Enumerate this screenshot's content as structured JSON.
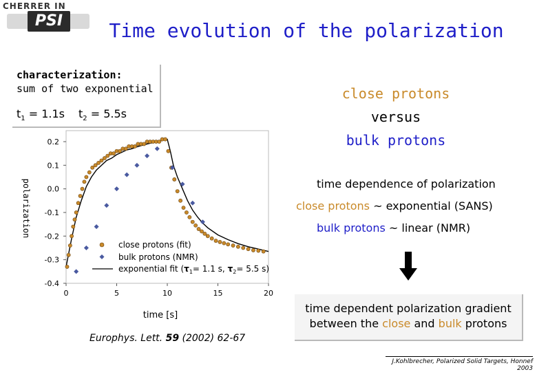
{
  "logo": {
    "top_text": "CHERRER IN",
    "mark": "PSI"
  },
  "title": "Time evolution of the polarization",
  "characterization": {
    "heading": "characterization:",
    "line2": "sum of two exponential",
    "t1_label": "t",
    "t1_sub": "1",
    "t1_value": " = 1.1s",
    "t2_label": "t",
    "t2_sub": "2",
    "t2_value": " = 5.5s"
  },
  "comparison": {
    "close": "close protons",
    "versus": "versus",
    "bulk": "bulk protons"
  },
  "right_panel": {
    "heading": "time dependence of polarization",
    "close_label": "close protons",
    "close_rest": " ~ exponential (SANS)",
    "bulk_label": "bulk protons",
    "bulk_rest": " ~ linear (NMR)",
    "arrow_icon": "down-arrow-icon"
  },
  "conclusion": {
    "line1": "time dependent polarization gradient",
    "pre": "between the ",
    "close": "close",
    "mid": " and ",
    "bulk": "bulk",
    "post": " protons"
  },
  "reference": {
    "journal": "Europhys. Lett. ",
    "volume": "59",
    "rest": " (2002) 62-67"
  },
  "footer": "J.Kohlbrecher, Polarized Solid Targets, Honnef 2003",
  "colors": {
    "title": "#1e1ec8",
    "close": "#c98a2a",
    "bulk_marker": "#4a5aa0",
    "fit": "#000000"
  },
  "chart_data": {
    "type": "scatter",
    "xlabel": "time [s]",
    "ylabel": "polarization",
    "xlim": [
      0,
      20
    ],
    "ylim": [
      -0.4,
      0.25
    ],
    "xticks": [
      "0",
      "5",
      "10",
      "15",
      "20"
    ],
    "yticks": [
      "0.2",
      "0.1",
      "0.0",
      "-0.1",
      "-0.2",
      "-0.3",
      "-0.4"
    ],
    "legend": {
      "placement": "lower-left",
      "close": "close protons (fit)",
      "bulk": "bulk protons (NMR)",
      "fit_pre": "exponential fit (",
      "fit_t1": "1",
      "fit_mid": "= 1.1 s, ",
      "fit_t2": "2",
      "fit_post": "= 5.5 s)"
    },
    "series": [
      {
        "name": "close protons (fit)",
        "x": [
          0.1,
          0.25,
          0.4,
          0.55,
          0.7,
          0.85,
          1.0,
          1.2,
          1.4,
          1.6,
          1.8,
          2.0,
          2.3,
          2.6,
          2.9,
          3.2,
          3.5,
          3.8,
          4.1,
          4.4,
          4.7,
          5.0,
          5.3,
          5.6,
          5.9,
          6.2,
          6.5,
          6.8,
          7.1,
          7.4,
          7.7,
          8.0,
          8.3,
          8.6,
          8.9,
          9.2,
          9.5,
          9.8,
          10.1,
          10.4,
          10.7,
          11.0,
          11.3,
          11.6,
          11.9,
          12.2,
          12.5,
          12.8,
          13.1,
          13.4,
          13.7,
          14.0,
          14.4,
          14.8,
          15.2,
          15.6,
          16.0,
          16.5,
          17.0,
          17.5,
          18.0,
          18.5,
          19.0,
          19.5
        ],
        "y": [
          -0.33,
          -0.28,
          -0.24,
          -0.2,
          -0.16,
          -0.13,
          -0.1,
          -0.06,
          -0.03,
          0.0,
          0.03,
          0.05,
          0.07,
          0.09,
          0.1,
          0.11,
          0.12,
          0.13,
          0.14,
          0.15,
          0.15,
          0.16,
          0.16,
          0.17,
          0.17,
          0.18,
          0.18,
          0.18,
          0.19,
          0.19,
          0.19,
          0.2,
          0.2,
          0.2,
          0.2,
          0.2,
          0.21,
          0.21,
          0.16,
          0.09,
          0.04,
          -0.01,
          -0.05,
          -0.08,
          -0.1,
          -0.12,
          -0.14,
          -0.155,
          -0.17,
          -0.18,
          -0.19,
          -0.2,
          -0.21,
          -0.22,
          -0.225,
          -0.23,
          -0.235,
          -0.24,
          -0.245,
          -0.25,
          -0.255,
          -0.26,
          -0.262,
          -0.265
        ]
      },
      {
        "name": "bulk protons (NMR)",
        "x": [
          1.0,
          2.0,
          3.0,
          4.0,
          5.0,
          6.0,
          7.0,
          8.0,
          9.0,
          10.5,
          11.5,
          12.5,
          13.5
        ],
        "y": [
          -0.35,
          -0.25,
          -0.16,
          -0.07,
          0.0,
          0.06,
          0.1,
          0.14,
          0.17,
          0.09,
          0.02,
          -0.06,
          -0.14
        ]
      }
    ],
    "fit": {
      "name": "exponential fit",
      "x": [
        0,
        0.5,
        1,
        1.5,
        2,
        2.5,
        3,
        3.5,
        4,
        4.5,
        5,
        5.5,
        6,
        6.5,
        7,
        7.5,
        8,
        8.5,
        9,
        9.5,
        10,
        10.3,
        10.6,
        11,
        11.5,
        12,
        12.5,
        13,
        13.5,
        14,
        15,
        16,
        17,
        18,
        19,
        20
      ],
      "y": [
        -0.33,
        -0.22,
        -0.12,
        -0.05,
        0.01,
        0.05,
        0.08,
        0.1,
        0.12,
        0.13,
        0.145,
        0.155,
        0.165,
        0.17,
        0.178,
        0.184,
        0.19,
        0.195,
        0.2,
        0.205,
        0.21,
        0.16,
        0.1,
        0.05,
        0.0,
        -0.05,
        -0.09,
        -0.12,
        -0.145,
        -0.165,
        -0.195,
        -0.215,
        -0.232,
        -0.245,
        -0.255,
        -0.265
      ]
    }
  }
}
